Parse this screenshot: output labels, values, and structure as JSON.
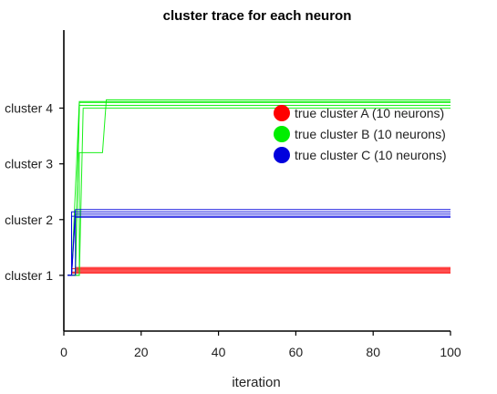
{
  "chart_data": {
    "type": "line",
    "title": "cluster trace for each neuron",
    "xlabel": "iteration",
    "ylabel": "",
    "xlim": [
      0,
      100
    ],
    "ylim": [
      0,
      5.4
    ],
    "x_ticks": [
      0,
      20,
      40,
      60,
      80,
      100
    ],
    "y_ticks": [
      {
        "value": 1,
        "label": "cluster 1"
      },
      {
        "value": 2,
        "label": "cluster 2"
      },
      {
        "value": 3,
        "label": "cluster 3"
      },
      {
        "value": 4,
        "label": "cluster 4"
      }
    ],
    "legend_position": "top-right",
    "series": [
      {
        "name": "true cluster A (10 neurons)",
        "color": "#ff0000",
        "lines": [
          {
            "x": [
              1,
              2,
              2,
              100
            ],
            "y": [
              1,
              1,
              1.04,
              1.04
            ]
          },
          {
            "x": [
              1,
              2,
              2,
              100
            ],
            "y": [
              1,
              1,
              1.06,
              1.06
            ]
          },
          {
            "x": [
              1,
              3,
              3,
              100
            ],
            "y": [
              1,
              1,
              1.08,
              1.08
            ]
          },
          {
            "x": [
              1,
              3,
              3,
              100
            ],
            "y": [
              1,
              1,
              1.1,
              1.1
            ]
          },
          {
            "x": [
              1,
              2,
              2,
              100
            ],
            "y": [
              1,
              1,
              1.12,
              1.12
            ]
          },
          {
            "x": [
              1,
              3,
              3,
              100
            ],
            "y": [
              1,
              1,
              1.14,
              1.14
            ]
          }
        ]
      },
      {
        "name": "true cluster B (10 neurons)",
        "color": "#00ee00",
        "lines": [
          {
            "x": [
              1,
              3,
              4,
              100
            ],
            "y": [
              1,
              1,
              4.05,
              4.05
            ]
          },
          {
            "x": [
              1,
              3,
              4,
              100
            ],
            "y": [
              1,
              1,
              4.1,
              4.1
            ]
          },
          {
            "x": [
              1,
              4,
              5,
              100
            ],
            "y": [
              1,
              1,
              4.0,
              4.0
            ]
          },
          {
            "x": [
              1,
              4,
              4,
              10,
              11,
              100
            ],
            "y": [
              1,
              1,
              3.2,
              3.2,
              4.15,
              4.15
            ]
          },
          {
            "x": [
              1,
              2,
              4,
              100
            ],
            "y": [
              1,
              1,
              4.12,
              4.12
            ]
          }
        ]
      },
      {
        "name": "true cluster C (10 neurons)",
        "color": "#0000dd",
        "lines": [
          {
            "x": [
              1,
              2,
              2,
              100
            ],
            "y": [
              1,
              1,
              2.06,
              2.06
            ]
          },
          {
            "x": [
              1,
              2,
              3,
              100
            ],
            "y": [
              1,
              1,
              2.1,
              2.1
            ]
          },
          {
            "x": [
              1,
              2,
              2,
              100
            ],
            "y": [
              1,
              1,
              2.14,
              2.14
            ]
          },
          {
            "x": [
              1,
              2,
              3,
              100
            ],
            "y": [
              1,
              1,
              2.18,
              2.18
            ]
          },
          {
            "x": [
              1,
              3,
              3,
              100
            ],
            "y": [
              1,
              1,
              2.04,
              2.04
            ]
          }
        ]
      }
    ]
  }
}
